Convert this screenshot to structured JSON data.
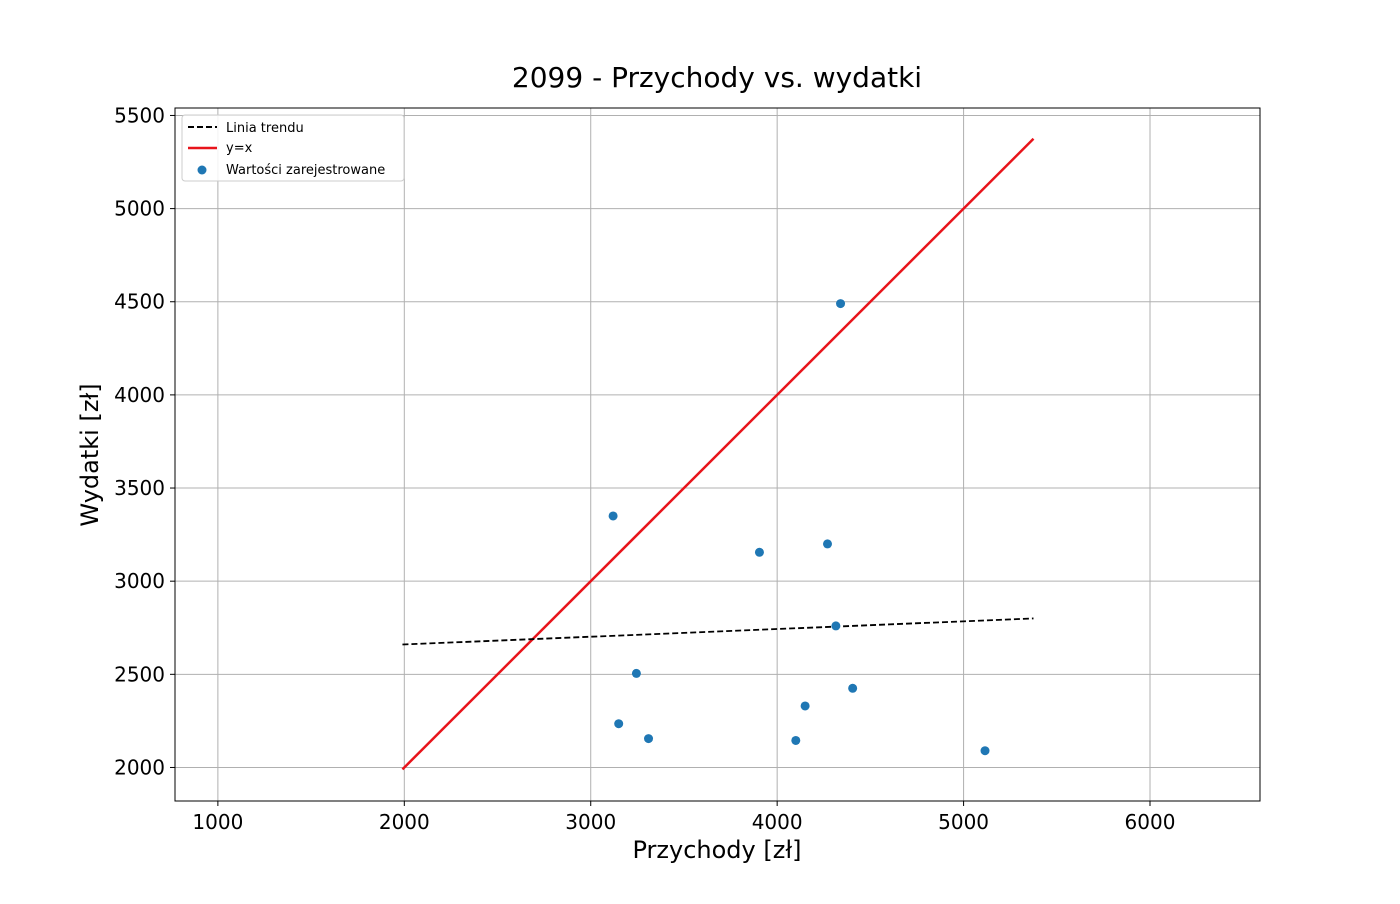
{
  "chart_data": {
    "type": "scatter",
    "title": "2099 - Przychody vs. wydatki",
    "xlabel": "Przychody [zł]",
    "ylabel": "Wydatki [zł]",
    "xlim": [
      770,
      6590
    ],
    "ylim": [
      1820,
      5540
    ],
    "x_ticks": [
      1000,
      2000,
      3000,
      4000,
      5000,
      6000
    ],
    "y_ticks": [
      2000,
      2500,
      3000,
      3500,
      4000,
      4500,
      5000,
      5500
    ],
    "grid": true,
    "legend_position": "top-left",
    "legend": {
      "trend_label": "Linia trendu",
      "identity_label": "y=x",
      "points_label": "Wartości zarejestrowane"
    },
    "colors": {
      "points": "#1f77b4",
      "identity": "#e8141b",
      "trend": "#000000",
      "grid": "#b0b0b0"
    },
    "points": [
      {
        "x": 3120,
        "y": 3350
      },
      {
        "x": 3150,
        "y": 2235
      },
      {
        "x": 3245,
        "y": 2505
      },
      {
        "x": 3310,
        "y": 2155
      },
      {
        "x": 3905,
        "y": 3155
      },
      {
        "x": 4100,
        "y": 2145
      },
      {
        "x": 4150,
        "y": 2330
      },
      {
        "x": 4270,
        "y": 3200
      },
      {
        "x": 4315,
        "y": 2760
      },
      {
        "x": 4340,
        "y": 4490
      },
      {
        "x": 4405,
        "y": 2425
      },
      {
        "x": 5115,
        "y": 2090
      }
    ],
    "identity_line": {
      "x": [
        1990,
        5375
      ],
      "y": [
        1990,
        5375
      ]
    },
    "trend_line": {
      "x": [
        1990,
        5375
      ],
      "y": [
        2660,
        2800
      ]
    }
  }
}
